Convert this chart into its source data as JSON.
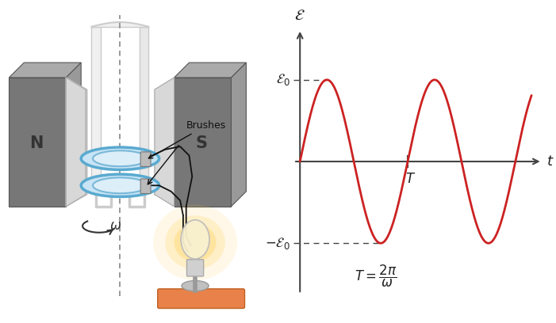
{
  "fig_width": 7.01,
  "fig_height": 4.08,
  "dpi": 100,
  "bg_color": "#ffffff",
  "magnet_dark": "#808080",
  "magnet_light": "#b0b0b0",
  "magnet_face": "#d0d0d0",
  "magnet_label_N": "N",
  "magnet_label_S": "S",
  "coil_color": "#5aaad0",
  "coil_light": "#b8ddf0",
  "coil_frame_color": "#d8d8d8",
  "coil_frame_dark": "#bbbbbb",
  "brush_color": "#c0c0c0",
  "wire_color": "#111111",
  "axis_dashed_color": "#555555",
  "bulb_glow_color": "#ffcc44",
  "bulb_body_color": "#f5e8b0",
  "base_color": "#e8824a",
  "base_edge": "#c06020",
  "omega_label": "ω",
  "brushes_label": "Brushes",
  "graph_line_color": "#cc2222",
  "graph_axis_color": "#444444",
  "graph_dashed_color": "#444444",
  "sine_amplitude": 1.0,
  "graph_xlim": [
    -0.15,
    4.6
  ],
  "graph_ylim": [
    -1.7,
    1.7
  ]
}
